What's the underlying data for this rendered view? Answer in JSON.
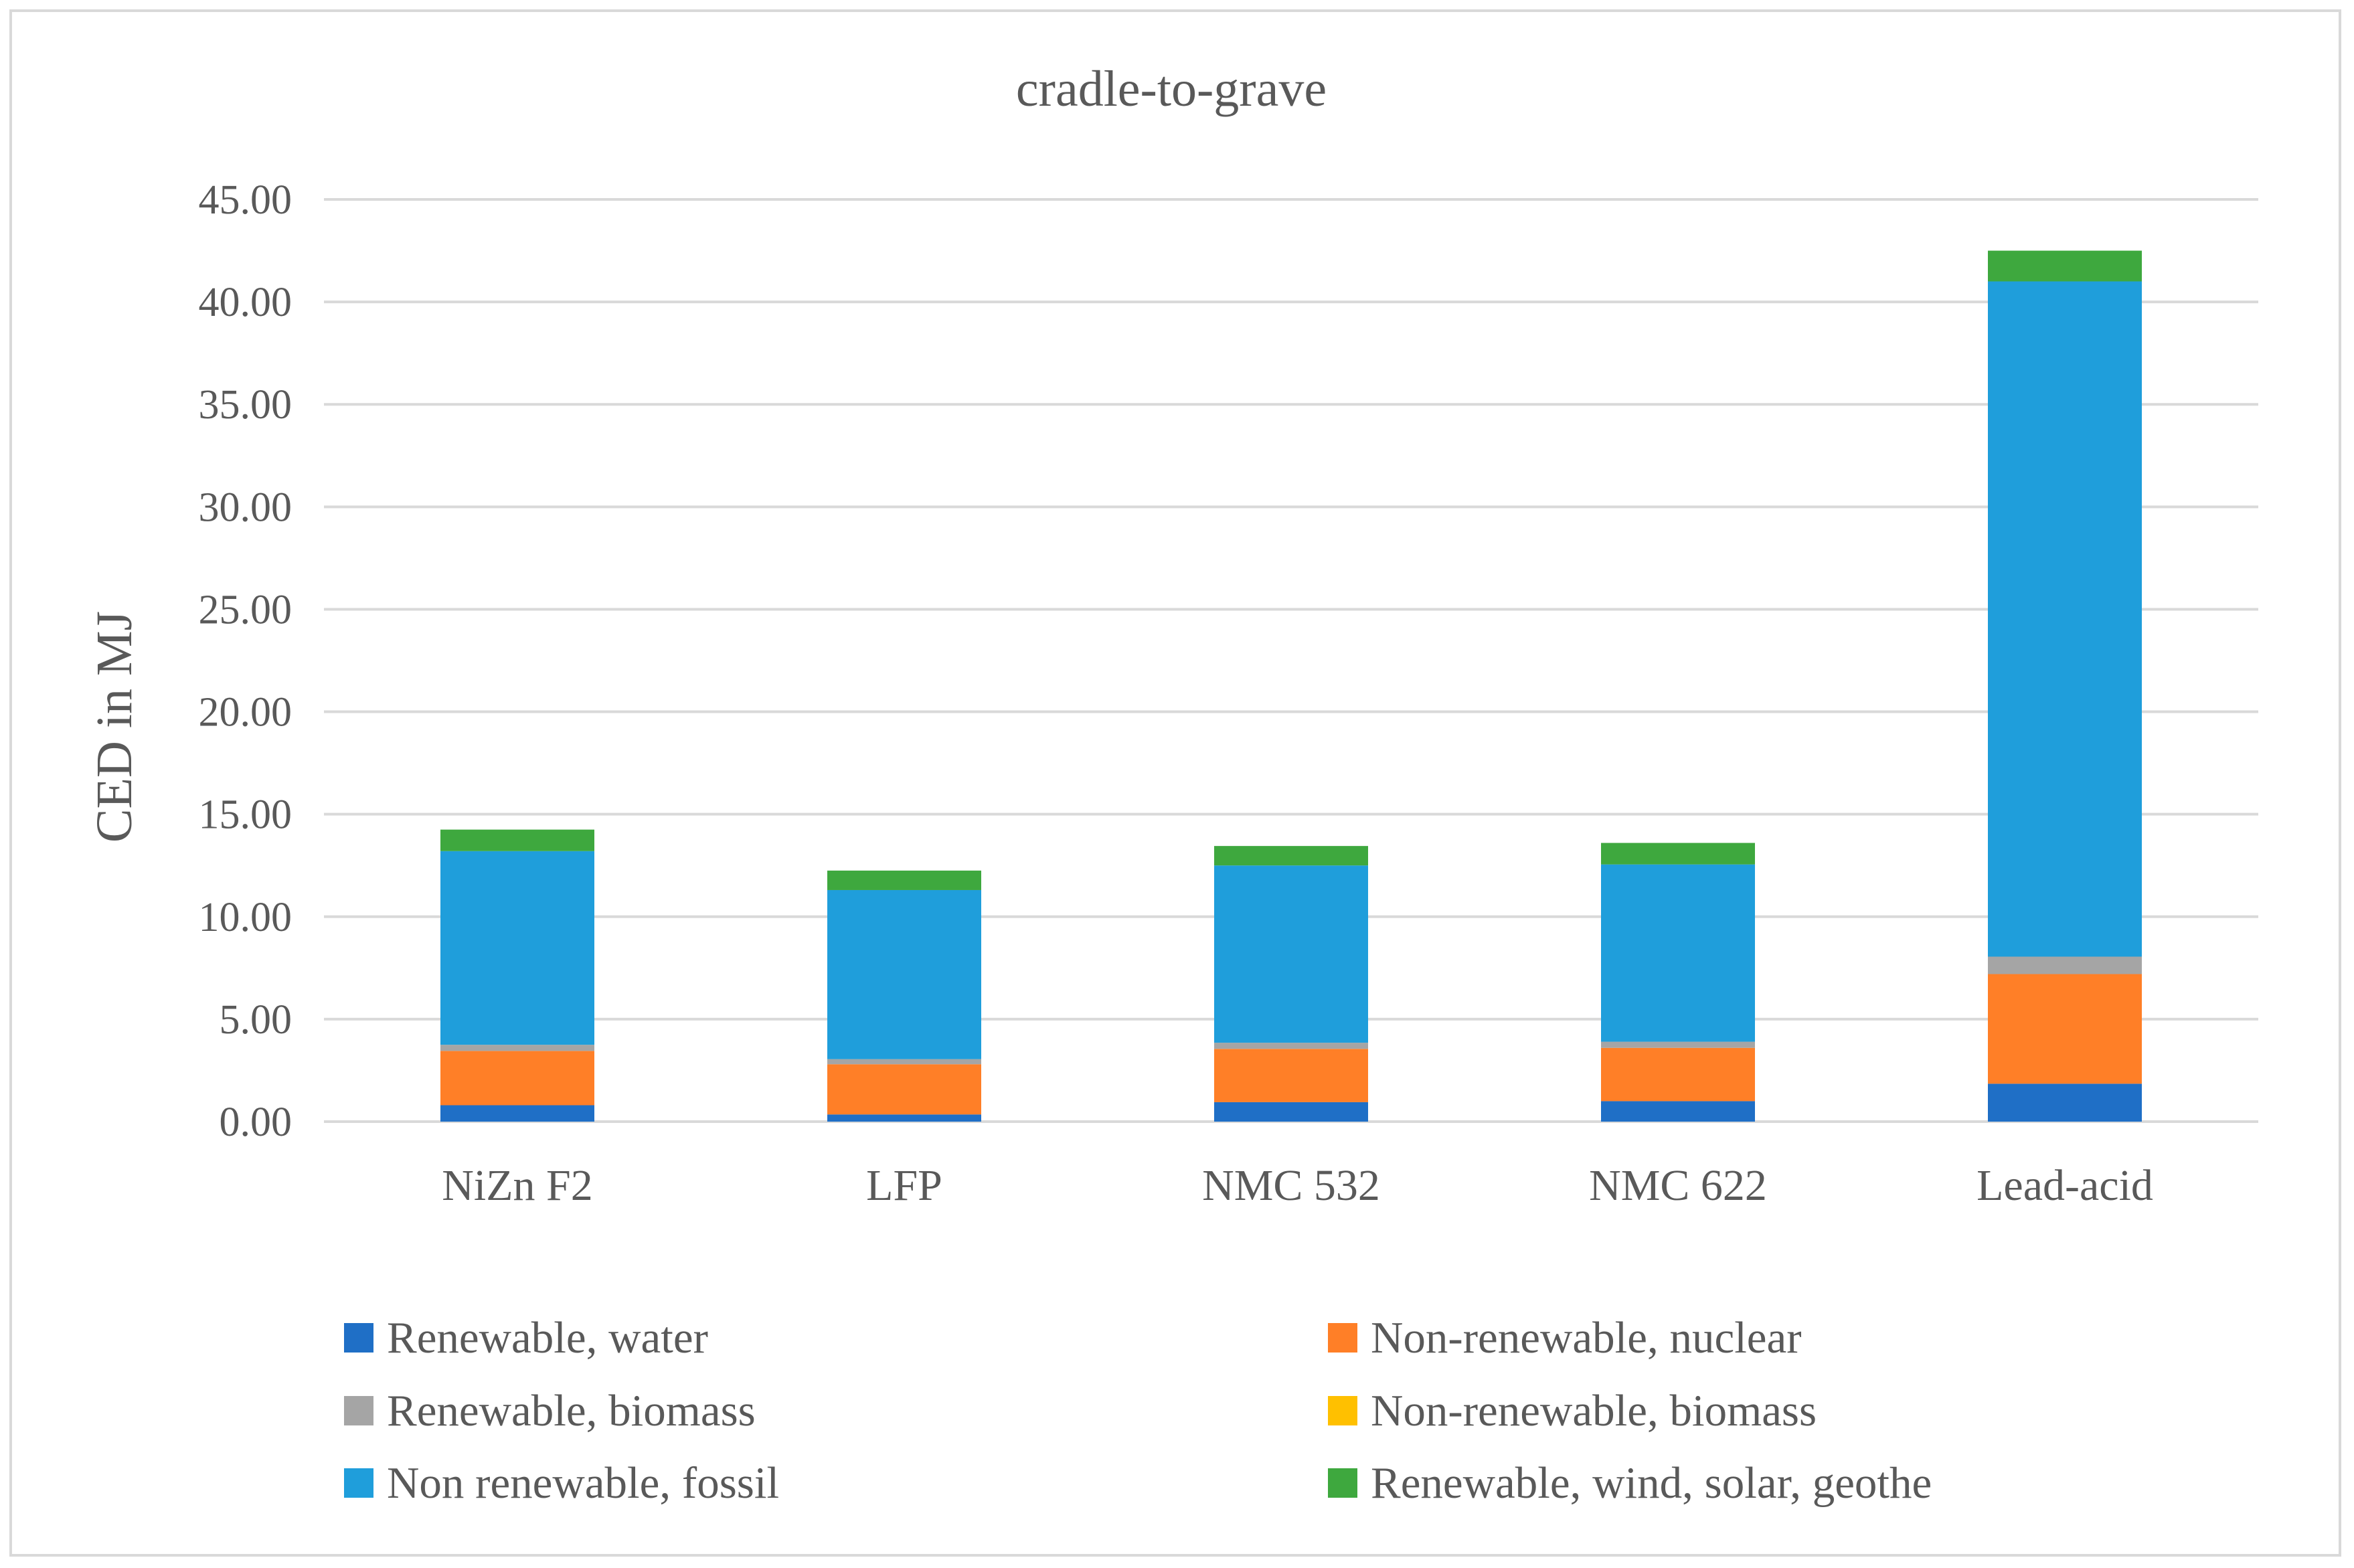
{
  "chart_data": {
    "type": "bar",
    "stacked": true,
    "title": "cradle-to-grave",
    "xlabel": "",
    "ylabel": "CED in MJ",
    "ylim": [
      0,
      45
    ],
    "yticks": [
      "0.00",
      "5.00",
      "10.00",
      "15.00",
      "20.00",
      "25.00",
      "30.00",
      "35.00",
      "40.00",
      "45.00"
    ],
    "grid": true,
    "legend_position": "bottom",
    "categories": [
      "NiZn F2",
      "LFP",
      "NMC 532",
      "NMC 622",
      "Lead-acid"
    ],
    "series": [
      {
        "name": "Renewable, water",
        "color": "#1f6fc6",
        "values": [
          0.8,
          0.35,
          0.95,
          1.0,
          1.85
        ]
      },
      {
        "name": "Non-renewable, nuclear",
        "color": "#ff7f27",
        "values": [
          2.65,
          2.45,
          2.6,
          2.6,
          5.35
        ]
      },
      {
        "name": "Renewable, biomass",
        "color": "#a5a5a5",
        "values": [
          0.3,
          0.25,
          0.3,
          0.3,
          0.85
        ]
      },
      {
        "name": "Non-renewable, biomass",
        "color": "#ffc000",
        "values": [
          0.0,
          0.0,
          0.0,
          0.0,
          0.0
        ]
      },
      {
        "name": "Non renewable, fossil",
        "color": "#1f9edb",
        "values": [
          9.45,
          8.25,
          8.65,
          8.65,
          32.95
        ]
      },
      {
        "name": "Renewable, wind, solar, geothe",
        "color": "#3ea83e",
        "values": [
          1.05,
          0.95,
          0.95,
          1.05,
          1.5
        ]
      }
    ]
  }
}
